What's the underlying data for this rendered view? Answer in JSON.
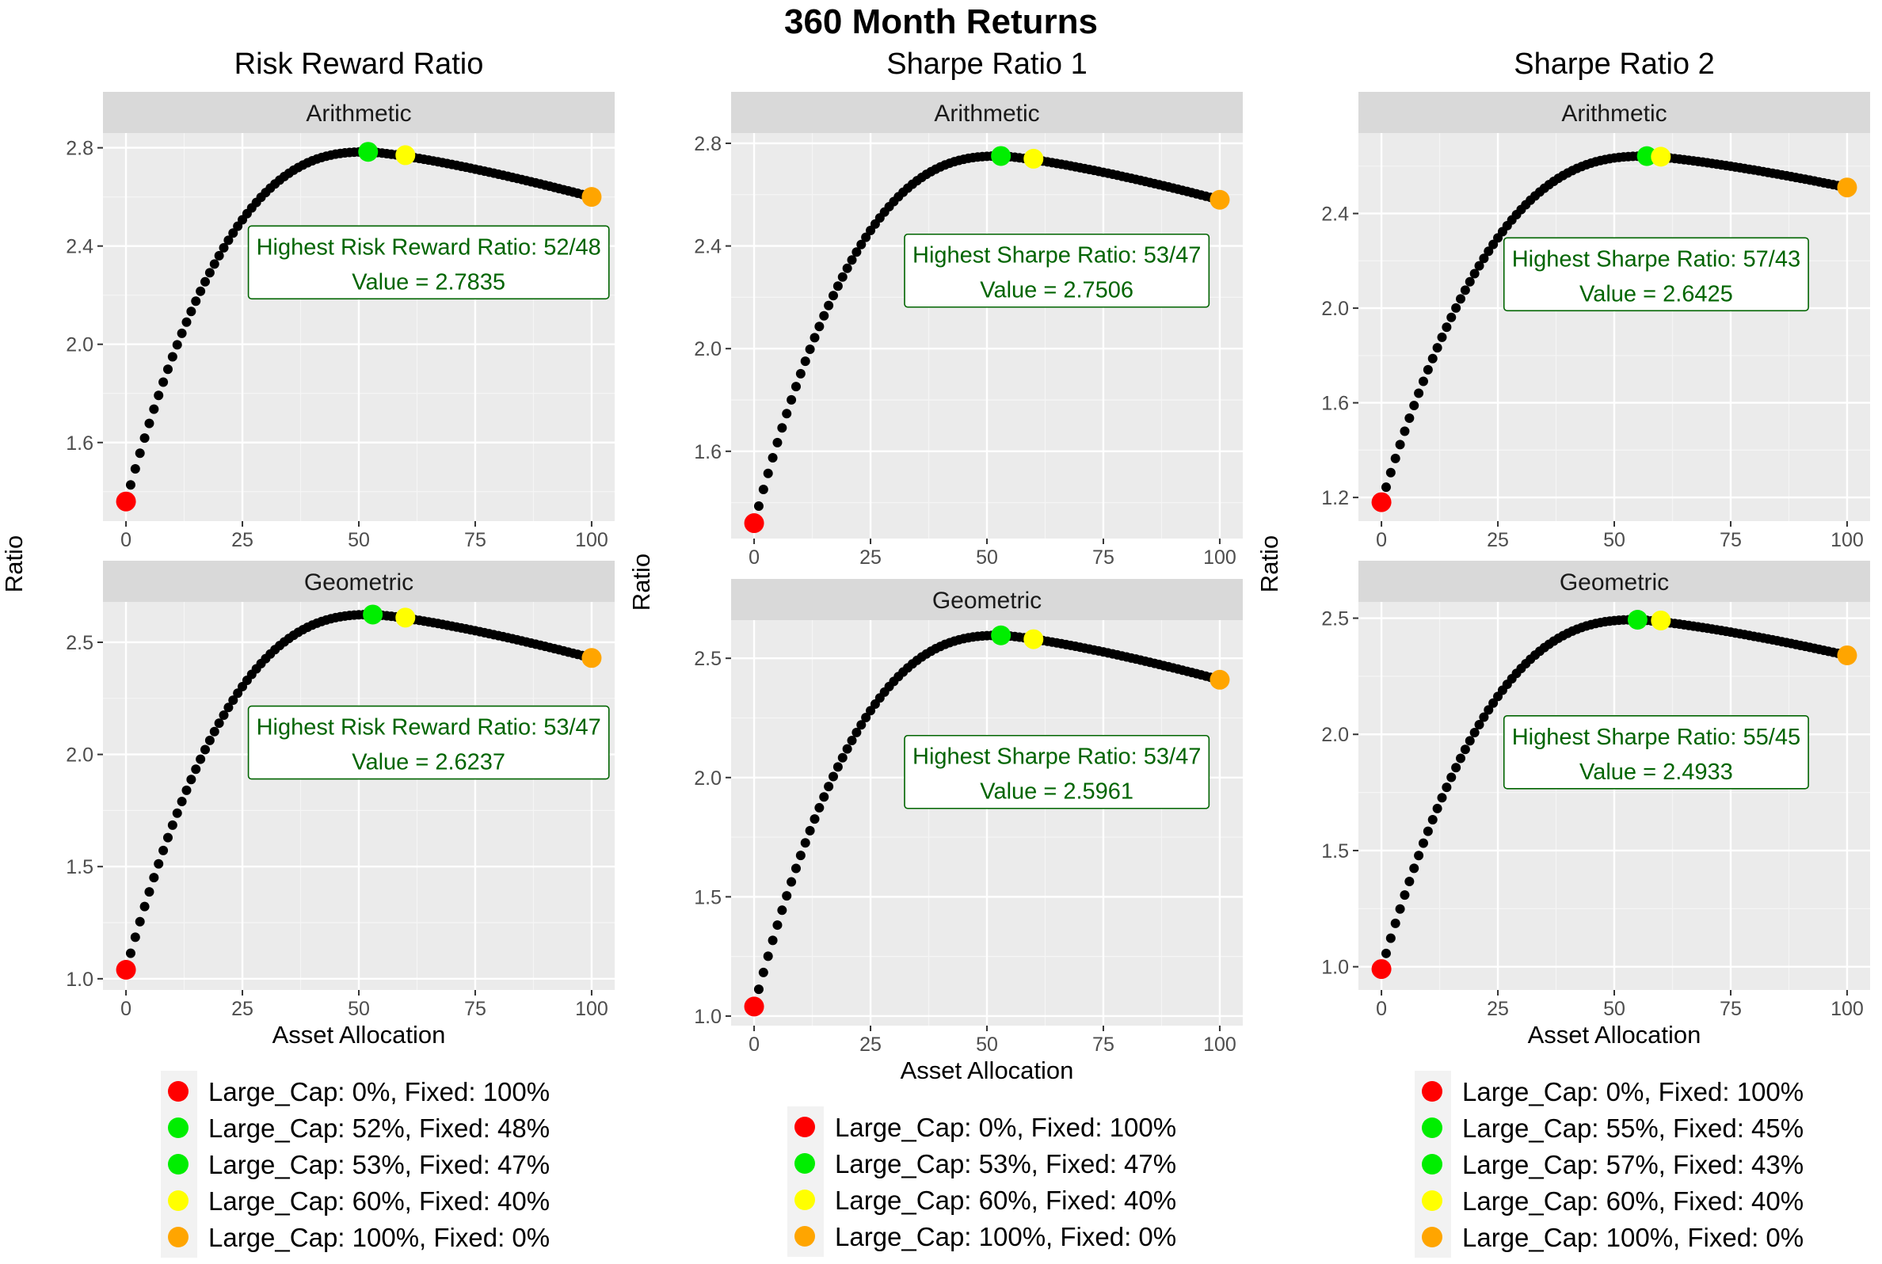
{
  "title": "360 Month Returns",
  "chart_data": [
    {
      "type": "scatter",
      "column_title": "Risk Reward Ratio",
      "xlabel": "Asset Allocation",
      "ylabel": "Ratio",
      "legend": [
        {
          "label": "Large_Cap: 0%,  Fixed: 100%",
          "color": "#ff0000"
        },
        {
          "label": "Large_Cap: 52%,  Fixed: 48%",
          "color": "#00ee00"
        },
        {
          "label": "Large_Cap: 53%,  Fixed: 47%",
          "color": "#00ee00"
        },
        {
          "label": "Large_Cap: 60%,  Fixed: 40%",
          "color": "#ffff00"
        },
        {
          "label": "Large_Cap: 100%,  Fixed: 0%",
          "color": "#ffa500"
        }
      ],
      "panels": [
        {
          "strip": "Arithmetic",
          "xlim": [
            0,
            100
          ],
          "ylim": [
            1.28,
            2.86
          ],
          "xticks": [
            0,
            25,
            50,
            75,
            100
          ],
          "yticks": [
            1.6,
            2.0,
            2.4,
            2.8
          ],
          "ytick_labels": [
            "1.6",
            "2.0",
            "2.4",
            "2.8"
          ],
          "start": 1.36,
          "peak_x": 52,
          "peak": 2.7835,
          "end": 2.6,
          "highlights": [
            {
              "x": 0,
              "y": 1.36,
              "color": "#ff0000"
            },
            {
              "x": 52,
              "y": 2.7835,
              "color": "#00ee00"
            },
            {
              "x": 60,
              "y": 2.77,
              "color": "#ffff00"
            },
            {
              "x": 100,
              "y": 2.6,
              "color": "#ffa500"
            }
          ],
          "annotation": {
            "line1": "Highest Risk Reward Ratio: 52/48",
            "line2": "Value = 2.7835",
            "x": 65,
            "y": 2.34
          }
        },
        {
          "strip": "Geometric",
          "xlim": [
            0,
            100
          ],
          "ylim": [
            0.95,
            2.68
          ],
          "xticks": [
            0,
            25,
            50,
            75,
            100
          ],
          "yticks": [
            1.0,
            1.5,
            2.0,
            2.5
          ],
          "ytick_labels": [
            "1.0",
            "1.5",
            "2.0",
            "2.5"
          ],
          "start": 1.04,
          "peak_x": 53,
          "peak": 2.6237,
          "end": 2.43,
          "highlights": [
            {
              "x": 0,
              "y": 1.04,
              "color": "#ff0000"
            },
            {
              "x": 53,
              "y": 2.6237,
              "color": "#00ee00"
            },
            {
              "x": 60,
              "y": 2.61,
              "color": "#ffff00"
            },
            {
              "x": 100,
              "y": 2.43,
              "color": "#ffa500"
            }
          ],
          "annotation": {
            "line1": "Highest Risk Reward Ratio: 53/47",
            "line2": "Value = 2.6237",
            "x": 65,
            "y": 2.06
          }
        }
      ]
    },
    {
      "type": "scatter",
      "column_title": "Sharpe Ratio 1",
      "xlabel": "Asset Allocation",
      "ylabel": "Ratio",
      "legend": [
        {
          "label": "Large_Cap: 0%,  Fixed: 100%",
          "color": "#ff0000"
        },
        {
          "label": "Large_Cap: 53%,  Fixed: 47%",
          "color": "#00ee00"
        },
        {
          "label": "Large_Cap: 60%,  Fixed: 40%",
          "color": "#ffff00"
        },
        {
          "label": "Large_Cap: 100%,  Fixed: 0%",
          "color": "#ffa500"
        }
      ],
      "panels": [
        {
          "strip": "Arithmetic",
          "xlim": [
            0,
            100
          ],
          "ylim": [
            1.26,
            2.84
          ],
          "xticks": [
            0,
            25,
            50,
            75,
            100
          ],
          "yticks": [
            1.6,
            2.0,
            2.4,
            2.8
          ],
          "ytick_labels": [
            "1.6",
            "2.0",
            "2.4",
            "2.8"
          ],
          "start": 1.32,
          "peak_x": 53,
          "peak": 2.7506,
          "end": 2.58,
          "highlights": [
            {
              "x": 0,
              "y": 1.32,
              "color": "#ff0000"
            },
            {
              "x": 53,
              "y": 2.7506,
              "color": "#00ee00"
            },
            {
              "x": 60,
              "y": 2.74,
              "color": "#ffff00"
            },
            {
              "x": 100,
              "y": 2.58,
              "color": "#ffa500"
            }
          ],
          "annotation": {
            "line1": "Highest Sharpe Ratio: 53/47",
            "line2": "Value = 2.7506",
            "x": 65,
            "y": 2.31
          }
        },
        {
          "strip": "Geometric",
          "xlim": [
            0,
            100
          ],
          "ylim": [
            0.96,
            2.66
          ],
          "xticks": [
            0,
            25,
            50,
            75,
            100
          ],
          "yticks": [
            1.0,
            1.5,
            2.0,
            2.5
          ],
          "ytick_labels": [
            "1.0",
            "1.5",
            "2.0",
            "2.5"
          ],
          "start": 1.04,
          "peak_x": 53,
          "peak": 2.5961,
          "end": 2.41,
          "highlights": [
            {
              "x": 0,
              "y": 1.04,
              "color": "#ff0000"
            },
            {
              "x": 53,
              "y": 2.5961,
              "color": "#00ee00"
            },
            {
              "x": 60,
              "y": 2.58,
              "color": "#ffff00"
            },
            {
              "x": 100,
              "y": 2.41,
              "color": "#ffa500"
            }
          ],
          "annotation": {
            "line1": "Highest Sharpe Ratio: 53/47",
            "line2": "Value = 2.5961",
            "x": 65,
            "y": 2.03
          }
        }
      ]
    },
    {
      "type": "scatter",
      "column_title": "Sharpe Ratio 2",
      "xlabel": "Asset Allocation",
      "ylabel": "Ratio",
      "legend": [
        {
          "label": "Large_Cap: 0%,  Fixed: 100%",
          "color": "#ff0000"
        },
        {
          "label": "Large_Cap: 55%,  Fixed: 45%",
          "color": "#00ee00"
        },
        {
          "label": "Large_Cap: 57%,  Fixed: 43%",
          "color": "#00ee00"
        },
        {
          "label": "Large_Cap: 60%,  Fixed: 40%",
          "color": "#ffff00"
        },
        {
          "label": "Large_Cap: 100%,  Fixed: 0%",
          "color": "#ffa500"
        }
      ],
      "panels": [
        {
          "strip": "Arithmetic",
          "xlim": [
            0,
            100
          ],
          "ylim": [
            1.1,
            2.74
          ],
          "xticks": [
            0,
            25,
            50,
            75,
            100
          ],
          "yticks": [
            1.2,
            1.6,
            2.0,
            2.4
          ],
          "ytick_labels": [
            "1.2",
            "1.6",
            "2.0",
            "2.4"
          ],
          "start": 1.18,
          "peak_x": 57,
          "peak": 2.6425,
          "end": 2.51,
          "highlights": [
            {
              "x": 0,
              "y": 1.18,
              "color": "#ff0000"
            },
            {
              "x": 57,
              "y": 2.6425,
              "color": "#00ee00"
            },
            {
              "x": 60,
              "y": 2.64,
              "color": "#ffff00"
            },
            {
              "x": 100,
              "y": 2.51,
              "color": "#ffa500"
            }
          ],
          "annotation": {
            "line1": "Highest Sharpe Ratio: 57/43",
            "line2": "Value = 2.6425",
            "x": 59,
            "y": 2.15
          }
        },
        {
          "strip": "Geometric",
          "xlim": [
            0,
            100
          ],
          "ylim": [
            0.9,
            2.57
          ],
          "xticks": [
            0,
            25,
            50,
            75,
            100
          ],
          "yticks": [
            1.0,
            1.5,
            2.0,
            2.5
          ],
          "ytick_labels": [
            "1.0",
            "1.5",
            "2.0",
            "2.5"
          ],
          "start": 0.99,
          "peak_x": 55,
          "peak": 2.4933,
          "end": 2.34,
          "highlights": [
            {
              "x": 0,
              "y": 0.99,
              "color": "#ff0000"
            },
            {
              "x": 55,
              "y": 2.4933,
              "color": "#00ee00"
            },
            {
              "x": 60,
              "y": 2.49,
              "color": "#ffff00"
            },
            {
              "x": 100,
              "y": 2.34,
              "color": "#ffa500"
            }
          ],
          "annotation": {
            "line1": "Highest Sharpe Ratio: 55/45",
            "line2": "Value = 2.4933",
            "x": 59,
            "y": 1.93
          }
        }
      ]
    }
  ]
}
